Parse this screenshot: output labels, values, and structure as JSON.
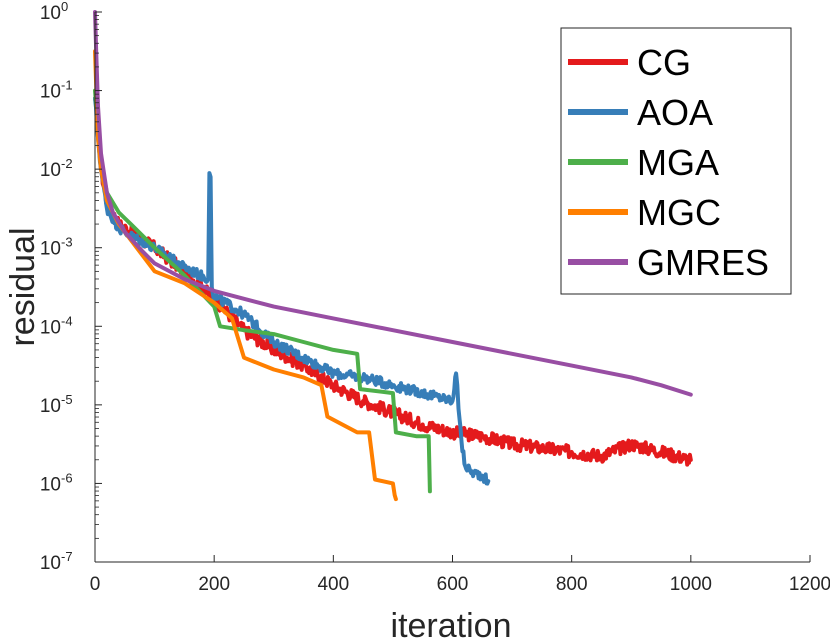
{
  "chart_data": {
    "type": "line",
    "title": "",
    "xlabel": "iteration",
    "ylabel": "residual",
    "xlim": [
      0,
      1200
    ],
    "ylim_log10": [
      -7,
      0
    ],
    "yscale": "log",
    "xticks": [
      {
        "value": 0,
        "label": "0"
      },
      {
        "value": 200,
        "label": "200"
      },
      {
        "value": 400,
        "label": "400"
      },
      {
        "value": 600,
        "label": "600"
      },
      {
        "value": 800,
        "label": "800"
      },
      {
        "value": 1000,
        "label": "1000"
      },
      {
        "value": 1200,
        "label": "1200"
      }
    ],
    "yticks": [
      {
        "exp": 0,
        "base": "10",
        "sup": "0"
      },
      {
        "exp": -1,
        "base": "10",
        "sup": "-1"
      },
      {
        "exp": -2,
        "base": "10",
        "sup": "-2"
      },
      {
        "exp": -3,
        "base": "10",
        "sup": "-3"
      },
      {
        "exp": -4,
        "base": "10",
        "sup": "-4"
      },
      {
        "exp": -5,
        "base": "10",
        "sup": "-5"
      },
      {
        "exp": -6,
        "base": "10",
        "sup": "-6"
      },
      {
        "exp": -7,
        "base": "10",
        "sup": "-7"
      }
    ],
    "legend_position": "top-right",
    "series": [
      {
        "name": "CG",
        "color": "#e41a1c",
        "noise": 0.08,
        "x": [
          0,
          5,
          10,
          20,
          40,
          60,
          100,
          150,
          200,
          250,
          300,
          350,
          400,
          450,
          500,
          550,
          600,
          650,
          700,
          750,
          800,
          850,
          900,
          950,
          1000
        ],
        "log10": [
          -1.1,
          -1.5,
          -2.0,
          -2.45,
          -2.7,
          -2.8,
          -3.0,
          -3.3,
          -3.65,
          -4.05,
          -4.3,
          -4.5,
          -4.75,
          -4.95,
          -5.1,
          -5.25,
          -5.35,
          -5.4,
          -5.5,
          -5.55,
          -5.6,
          -5.65,
          -5.5,
          -5.6,
          -5.7
        ]
      },
      {
        "name": "AOA",
        "color": "#377eb8",
        "noise": 0.06,
        "x": [
          0,
          5,
          10,
          20,
          40,
          60,
          100,
          150,
          190,
          192,
          194,
          196,
          198,
          250,
          300,
          350,
          400,
          450,
          500,
          550,
          600,
          606,
          608,
          610,
          612,
          615,
          620,
          630,
          650,
          660
        ],
        "log10": [
          -1.1,
          -1.6,
          -2.0,
          -2.5,
          -2.75,
          -2.85,
          -3.0,
          -3.25,
          -3.4,
          -2.05,
          -2.1,
          -3.5,
          -3.6,
          -3.85,
          -4.2,
          -4.4,
          -4.6,
          -4.65,
          -4.75,
          -4.85,
          -4.95,
          -4.6,
          -4.75,
          -5.05,
          -5.2,
          -5.45,
          -5.75,
          -5.85,
          -5.9,
          -5.97
        ]
      },
      {
        "name": "MGA",
        "color": "#4daf4a",
        "noise": 0.0,
        "x": [
          0,
          5,
          10,
          20,
          40,
          60,
          100,
          150,
          200,
          210,
          250,
          300,
          350,
          400,
          440,
          445,
          500,
          505,
          540,
          560,
          562
        ],
        "log10": [
          -1.0,
          -1.5,
          -1.9,
          -2.3,
          -2.55,
          -2.7,
          -3.0,
          -3.35,
          -3.75,
          -4.0,
          -4.05,
          -4.1,
          -4.2,
          -4.3,
          -4.35,
          -4.8,
          -4.85,
          -5.35,
          -5.4,
          -5.4,
          -6.1
        ]
      },
      {
        "name": "MGC",
        "color": "#ff7f00",
        "noise": 0.0,
        "x": [
          0,
          5,
          10,
          20,
          40,
          60,
          100,
          150,
          200,
          230,
          250,
          300,
          350,
          380,
          390,
          440,
          460,
          470,
          500,
          503,
          505
        ],
        "log10": [
          -0.5,
          -1.6,
          -2.0,
          -2.4,
          -2.7,
          -2.9,
          -3.3,
          -3.45,
          -3.7,
          -3.9,
          -4.4,
          -4.55,
          -4.65,
          -4.75,
          -5.15,
          -5.35,
          -5.35,
          -5.95,
          -6.0,
          -6.15,
          -6.2
        ]
      },
      {
        "name": "GMRES",
        "color": "#984ea3",
        "noise": 0.0,
        "x": [
          0,
          2,
          5,
          10,
          20,
          30,
          50,
          80,
          100,
          150,
          200,
          250,
          300,
          400,
          500,
          600,
          700,
          800,
          900,
          950,
          1000
        ],
        "log10": [
          0.0,
          -0.5,
          -1.2,
          -1.8,
          -2.3,
          -2.55,
          -2.8,
          -3.05,
          -3.2,
          -3.4,
          -3.55,
          -3.65,
          -3.75,
          -3.9,
          -4.05,
          -4.2,
          -4.35,
          -4.5,
          -4.65,
          -4.75,
          -4.87
        ]
      }
    ]
  }
}
